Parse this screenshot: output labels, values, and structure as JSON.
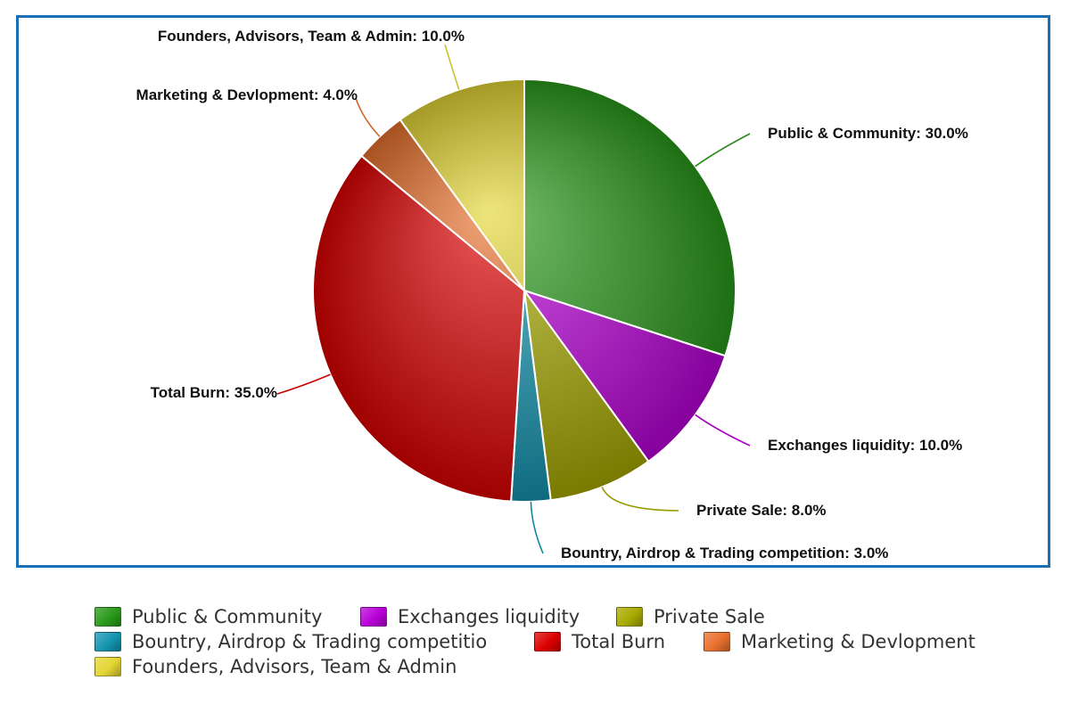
{
  "chart_data": {
    "type": "pie",
    "title": "",
    "slices": [
      {
        "name": "Public & Community",
        "value": 30.0,
        "label": "Public & Community: 30.0%",
        "color": "#2a9a1a"
      },
      {
        "name": "Exchanges liquidity",
        "value": 10.0,
        "label": "Exchanges liquidity: 10.0%",
        "color": "#b900d8"
      },
      {
        "name": "Private Sale",
        "value": 8.0,
        "label": "Private Sale: 8.0%",
        "color": "#a8aa00"
      },
      {
        "name": "Bountry, Airdrop & Trading competition",
        "value": 3.0,
        "label": "Bountry, Airdrop & Trading competition: 3.0%",
        "color": "#1495b0"
      },
      {
        "name": "Total Burn",
        "value": 35.0,
        "label": "Total Burn: 35.0%",
        "color": "#dd0000"
      },
      {
        "name": "Marketing & Devlopment",
        "value": 4.0,
        "label": "Marketing & Devlopment: 4.0%",
        "color": "#e8702c"
      },
      {
        "name": "Founders, Advisors, Team & Admin",
        "value": 10.0,
        "label": "Founders, Advisors, Team & Admin: 10.0%",
        "color": "#e4d634"
      }
    ],
    "legend": {
      "placement": "bottom",
      "items": [
        "Public & Community",
        "Exchanges liquidity",
        "Private Sale",
        "Bountry, Airdrop & Trading competitio",
        "Total Burn",
        "Marketing & Devlopment",
        "Founders, Advisors, Team & Admin"
      ]
    }
  }
}
